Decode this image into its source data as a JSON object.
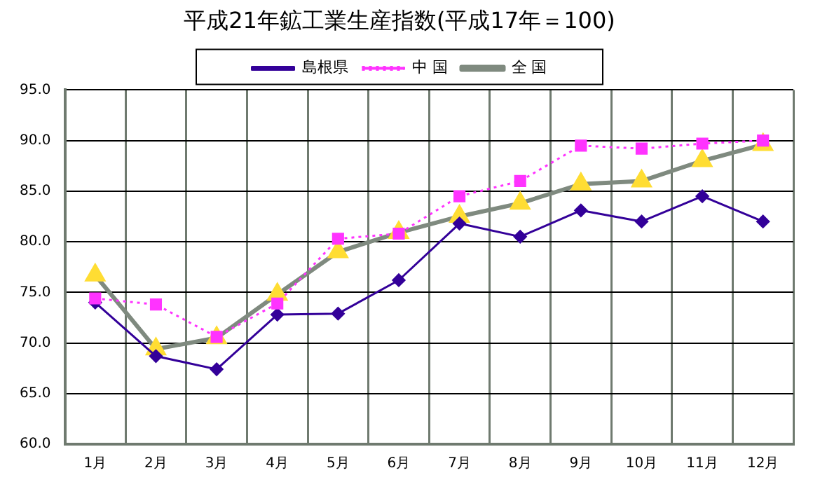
{
  "chart_data": {
    "type": "line",
    "title": "平成21年鉱工業生産指数(平成17年＝100)",
    "categories": [
      "1月",
      "2月",
      "3月",
      "4月",
      "5月",
      "6月",
      "7月",
      "8月",
      "9月",
      "10月",
      "11月",
      "12月"
    ],
    "series": [
      {
        "name": "島根県",
        "color": "#330099",
        "marker": "diamond",
        "line_style": "solid",
        "values": [
          74.0,
          68.7,
          67.4,
          72.8,
          72.9,
          76.2,
          81.8,
          80.5,
          83.1,
          82.0,
          84.5,
          82.0
        ]
      },
      {
        "name": "中 国",
        "color": "#ff33ff",
        "marker": "square",
        "line_style": "dotted",
        "values": [
          74.4,
          73.8,
          70.6,
          73.9,
          80.3,
          80.8,
          84.5,
          86.0,
          89.5,
          89.2,
          89.7,
          90.0
        ]
      },
      {
        "name": "全 国",
        "color": "#7f8a7f",
        "marker": "triangle",
        "line_style": "solid",
        "values": [
          76.7,
          69.4,
          70.5,
          74.8,
          79.0,
          80.9,
          82.5,
          83.8,
          85.7,
          86.0,
          88.0,
          89.6
        ]
      }
    ],
    "ylim": [
      60,
      95
    ],
    "yticks": [
      {
        "value": 60,
        "label": "60.0"
      },
      {
        "value": 65,
        "label": "65.0"
      },
      {
        "value": 70,
        "label": "70.0"
      },
      {
        "value": 75,
        "label": "75.0"
      },
      {
        "value": 80,
        "label": "80.0"
      },
      {
        "value": 85,
        "label": "85.0"
      },
      {
        "value": 90,
        "label": "90.0"
      },
      {
        "value": 95,
        "label": "95.0"
      }
    ],
    "grid": true,
    "legend": "top"
  }
}
